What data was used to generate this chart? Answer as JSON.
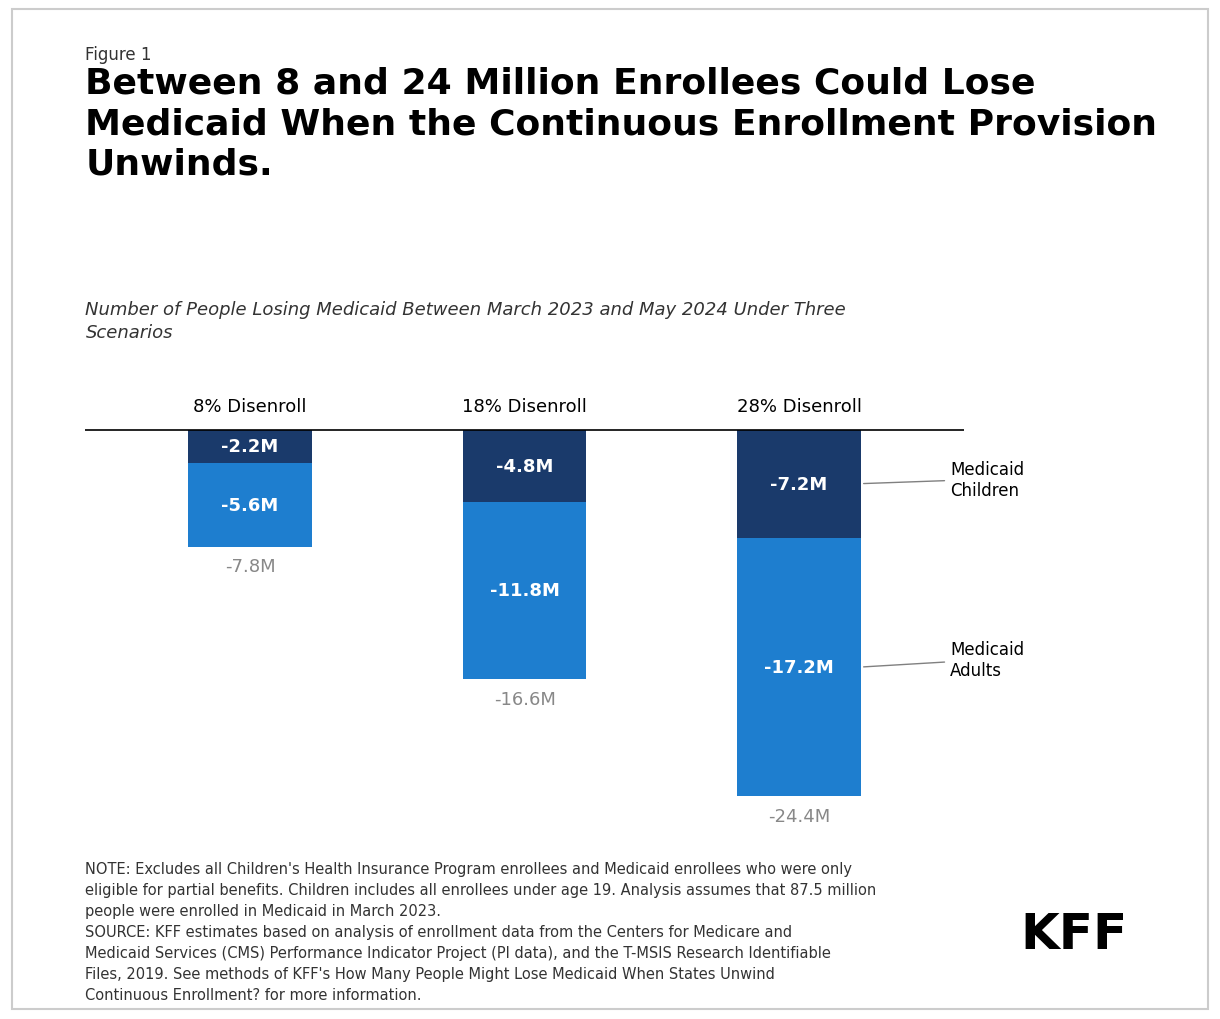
{
  "figure_label": "Figure 1",
  "title": "Between 8 and 24 Million Enrollees Could Lose\nMedicaid When the Continuous Enrollment Provision\nUnwinds.",
  "subtitle": "Number of People Losing Medicaid Between March 2023 and May 2024 Under Three\nScenarios",
  "categories": [
    "8% Disenroll",
    "18% Disenroll",
    "28% Disenroll"
  ],
  "children_values": [
    2.2,
    4.8,
    7.2
  ],
  "adults_values": [
    5.6,
    11.8,
    17.2
  ],
  "total_values": [
    7.8,
    16.6,
    24.4
  ],
  "children_labels": [
    "-2.2M",
    "-4.8M",
    "-7.2M"
  ],
  "adults_labels": [
    "-5.6M",
    "-11.8M",
    "-17.2M"
  ],
  "total_labels": [
    "-7.8M",
    "-16.6M",
    "-24.4M"
  ],
  "color_children": "#1a3a6b",
  "color_adults": "#1e7ecf",
  "color_total_label": "#888888",
  "bar_width": 0.45,
  "background_color": "#ffffff",
  "note_text": "NOTE: Excludes all Children's Health Insurance Program enrollees and Medicaid enrollees who were only\neligible for partial benefits. Children includes all enrollees under age 19. Analysis assumes that 87.5 million\npeople were enrolled in Medicaid in March 2023.\nSOURCE: KFF estimates based on analysis of enrollment data from the Centers for Medicare and\nMedicaid Services (CMS) Performance Indicator Project (PI data), and the T-MSIS Research Identifiable\nFiles, 2019. See methods of KFF's How Many People Might Lose Medicaid When States Unwind\nContinuous Enrollment? for more information.",
  "legend_children": "Medicaid\nChildren",
  "legend_adults": "Medicaid\nAdults"
}
